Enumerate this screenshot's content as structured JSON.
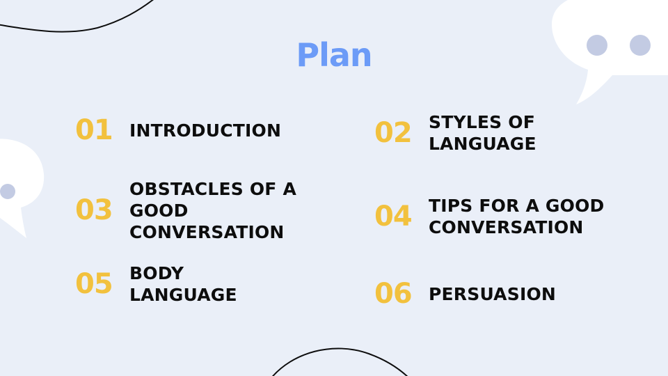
{
  "slide": {
    "title": "Plan",
    "items": [
      {
        "number": "01",
        "label": "INTRODUCTION"
      },
      {
        "number": "02",
        "label": "STYLES OF\nLANGUAGE"
      },
      {
        "number": "03",
        "label": "OBSTACLES OF A\nGOOD\nCONVERSATION"
      },
      {
        "number": "04",
        "label": "TIPS FOR A GOOD\nCONVERSATION"
      },
      {
        "number": "05",
        "label": "BODY\nLANGUAGE"
      },
      {
        "number": "06",
        "label": "PERSUASION"
      }
    ]
  },
  "colors": {
    "background": "#eaeff8",
    "title": "#6c9bf7",
    "number": "#f2c13e",
    "label": "#0d0d0d",
    "bubble": "#ffffff",
    "bubble_dot": "#c3cbe3",
    "line": "#0d0d0d"
  },
  "decorations": {
    "icons": [
      "speech-bubble-icon",
      "speech-bubble-icon"
    ]
  }
}
